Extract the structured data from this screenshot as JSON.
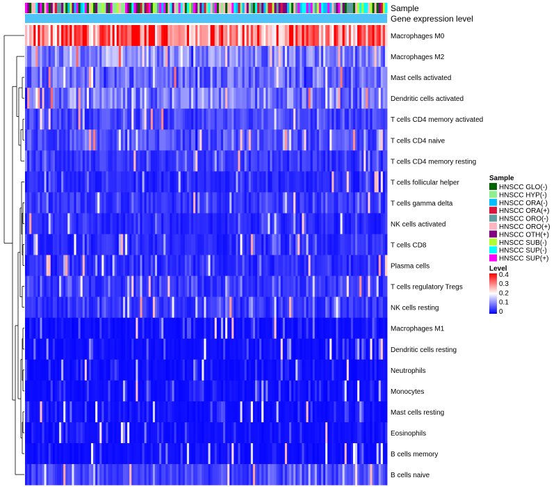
{
  "chart_data": {
    "type": "heatmap",
    "annotation_tracks": [
      "Sample",
      "Gene expression level"
    ],
    "rows": [
      "Macrophages M0",
      "Macrophages M2",
      "Mast cells activated",
      "Dendritic cells activated",
      "T cells CD4 memory activated",
      "T cells CD4 naive",
      "T cells CD4 memory resting",
      "T cells follicular helper",
      "T cells gamma delta",
      "NK cells activated",
      "T cells CD8",
      "Plasma cells",
      "T cells regulatory  Tregs",
      "NK cells resting",
      "Macrophages M1",
      "Dendritic cells resting",
      "Neutrophils",
      "Monocytes",
      "Mast cells resting",
      "Eosinophils",
      "B cells memory",
      "B cells naive"
    ],
    "row_mean_levels": [
      0.33,
      0.1,
      0.08,
      0.09,
      0.05,
      0.06,
      0.04,
      0.03,
      0.04,
      0.03,
      0.03,
      0.03,
      0.04,
      0.04,
      0.01,
      0.01,
      0.01,
      0.01,
      0.01,
      0.01,
      0.01,
      0.05
    ],
    "n_columns": 170,
    "color_scale": {
      "title": "Level",
      "ticks": [
        "0.4",
        "0.3",
        "0.2",
        "0.1",
        "0"
      ],
      "range": [
        0,
        0.4
      ],
      "low_color": "#0000ff",
      "mid_color": "#ffffff",
      "high_color": "#ff0000"
    },
    "sample_legend": {
      "title": "Sample",
      "entries": [
        {
          "label": "HNSCC GLO(-)",
          "color": "#006400"
        },
        {
          "label": "HNSCC HYP(-)",
          "color": "#90ee90"
        },
        {
          "label": "HNSCC ORA(-)",
          "color": "#00bfff"
        },
        {
          "label": "HNSCC ORA(+)",
          "color": "#dc143c"
        },
        {
          "label": "HNSCC ORO(-)",
          "color": "#5f9ea0"
        },
        {
          "label": "HNSCC ORO(+)",
          "color": "#ffb6c1"
        },
        {
          "label": "HNSCC OTH(+)",
          "color": "#800080"
        },
        {
          "label": "HNSCC SUB(-)",
          "color": "#adff2f"
        },
        {
          "label": "HNSCC SUP(-)",
          "color": "#00ffff"
        },
        {
          "label": "HNSCC SUP(+)",
          "color": "#ff00ff"
        }
      ]
    },
    "gene_expression_track_color": "#4fc3f7"
  }
}
